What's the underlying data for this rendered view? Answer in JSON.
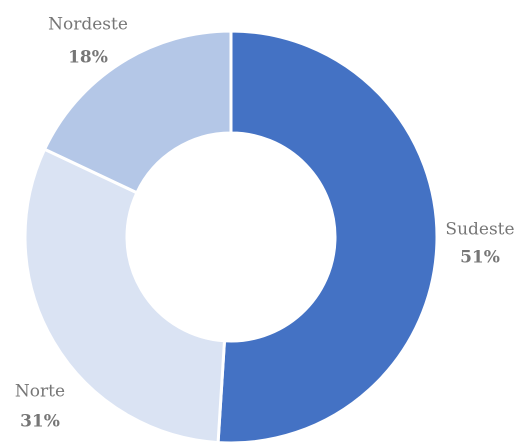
{
  "chart_data": {
    "type": "donut",
    "categories": [
      "Sudeste",
      "Norte",
      "Nordeste"
    ],
    "values": [
      51,
      31,
      18
    ],
    "value_labels": [
      "51%",
      "31%",
      "18%"
    ],
    "colors": [
      "#4472c4",
      "#dae3f3",
      "#b4c7e7"
    ]
  }
}
